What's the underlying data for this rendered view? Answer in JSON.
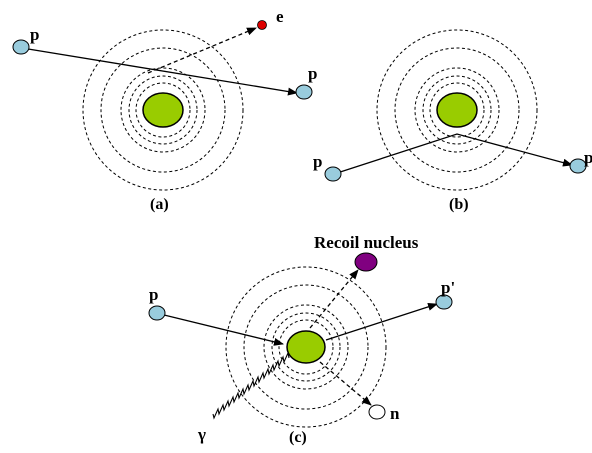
{
  "panels": {
    "a": {
      "caption": "(a)",
      "labels": {
        "incoming": "p",
        "outgoing": "p",
        "ejected": "e"
      }
    },
    "b": {
      "caption": "(b)",
      "labels": {
        "incoming": "p",
        "outgoing": "p"
      }
    },
    "c": {
      "caption": "(c)",
      "labels": {
        "incoming": "p",
        "outgoing": "p'",
        "recoil": "Recoil nucleus",
        "neutron": "n",
        "gamma": "γ"
      }
    }
  },
  "colors": {
    "nucleus": "#99cc00",
    "proton": "#99ccdd",
    "electron": "#dd0000",
    "recoil": "#800080",
    "neutron": "#ffffff",
    "stroke": "#000000"
  }
}
